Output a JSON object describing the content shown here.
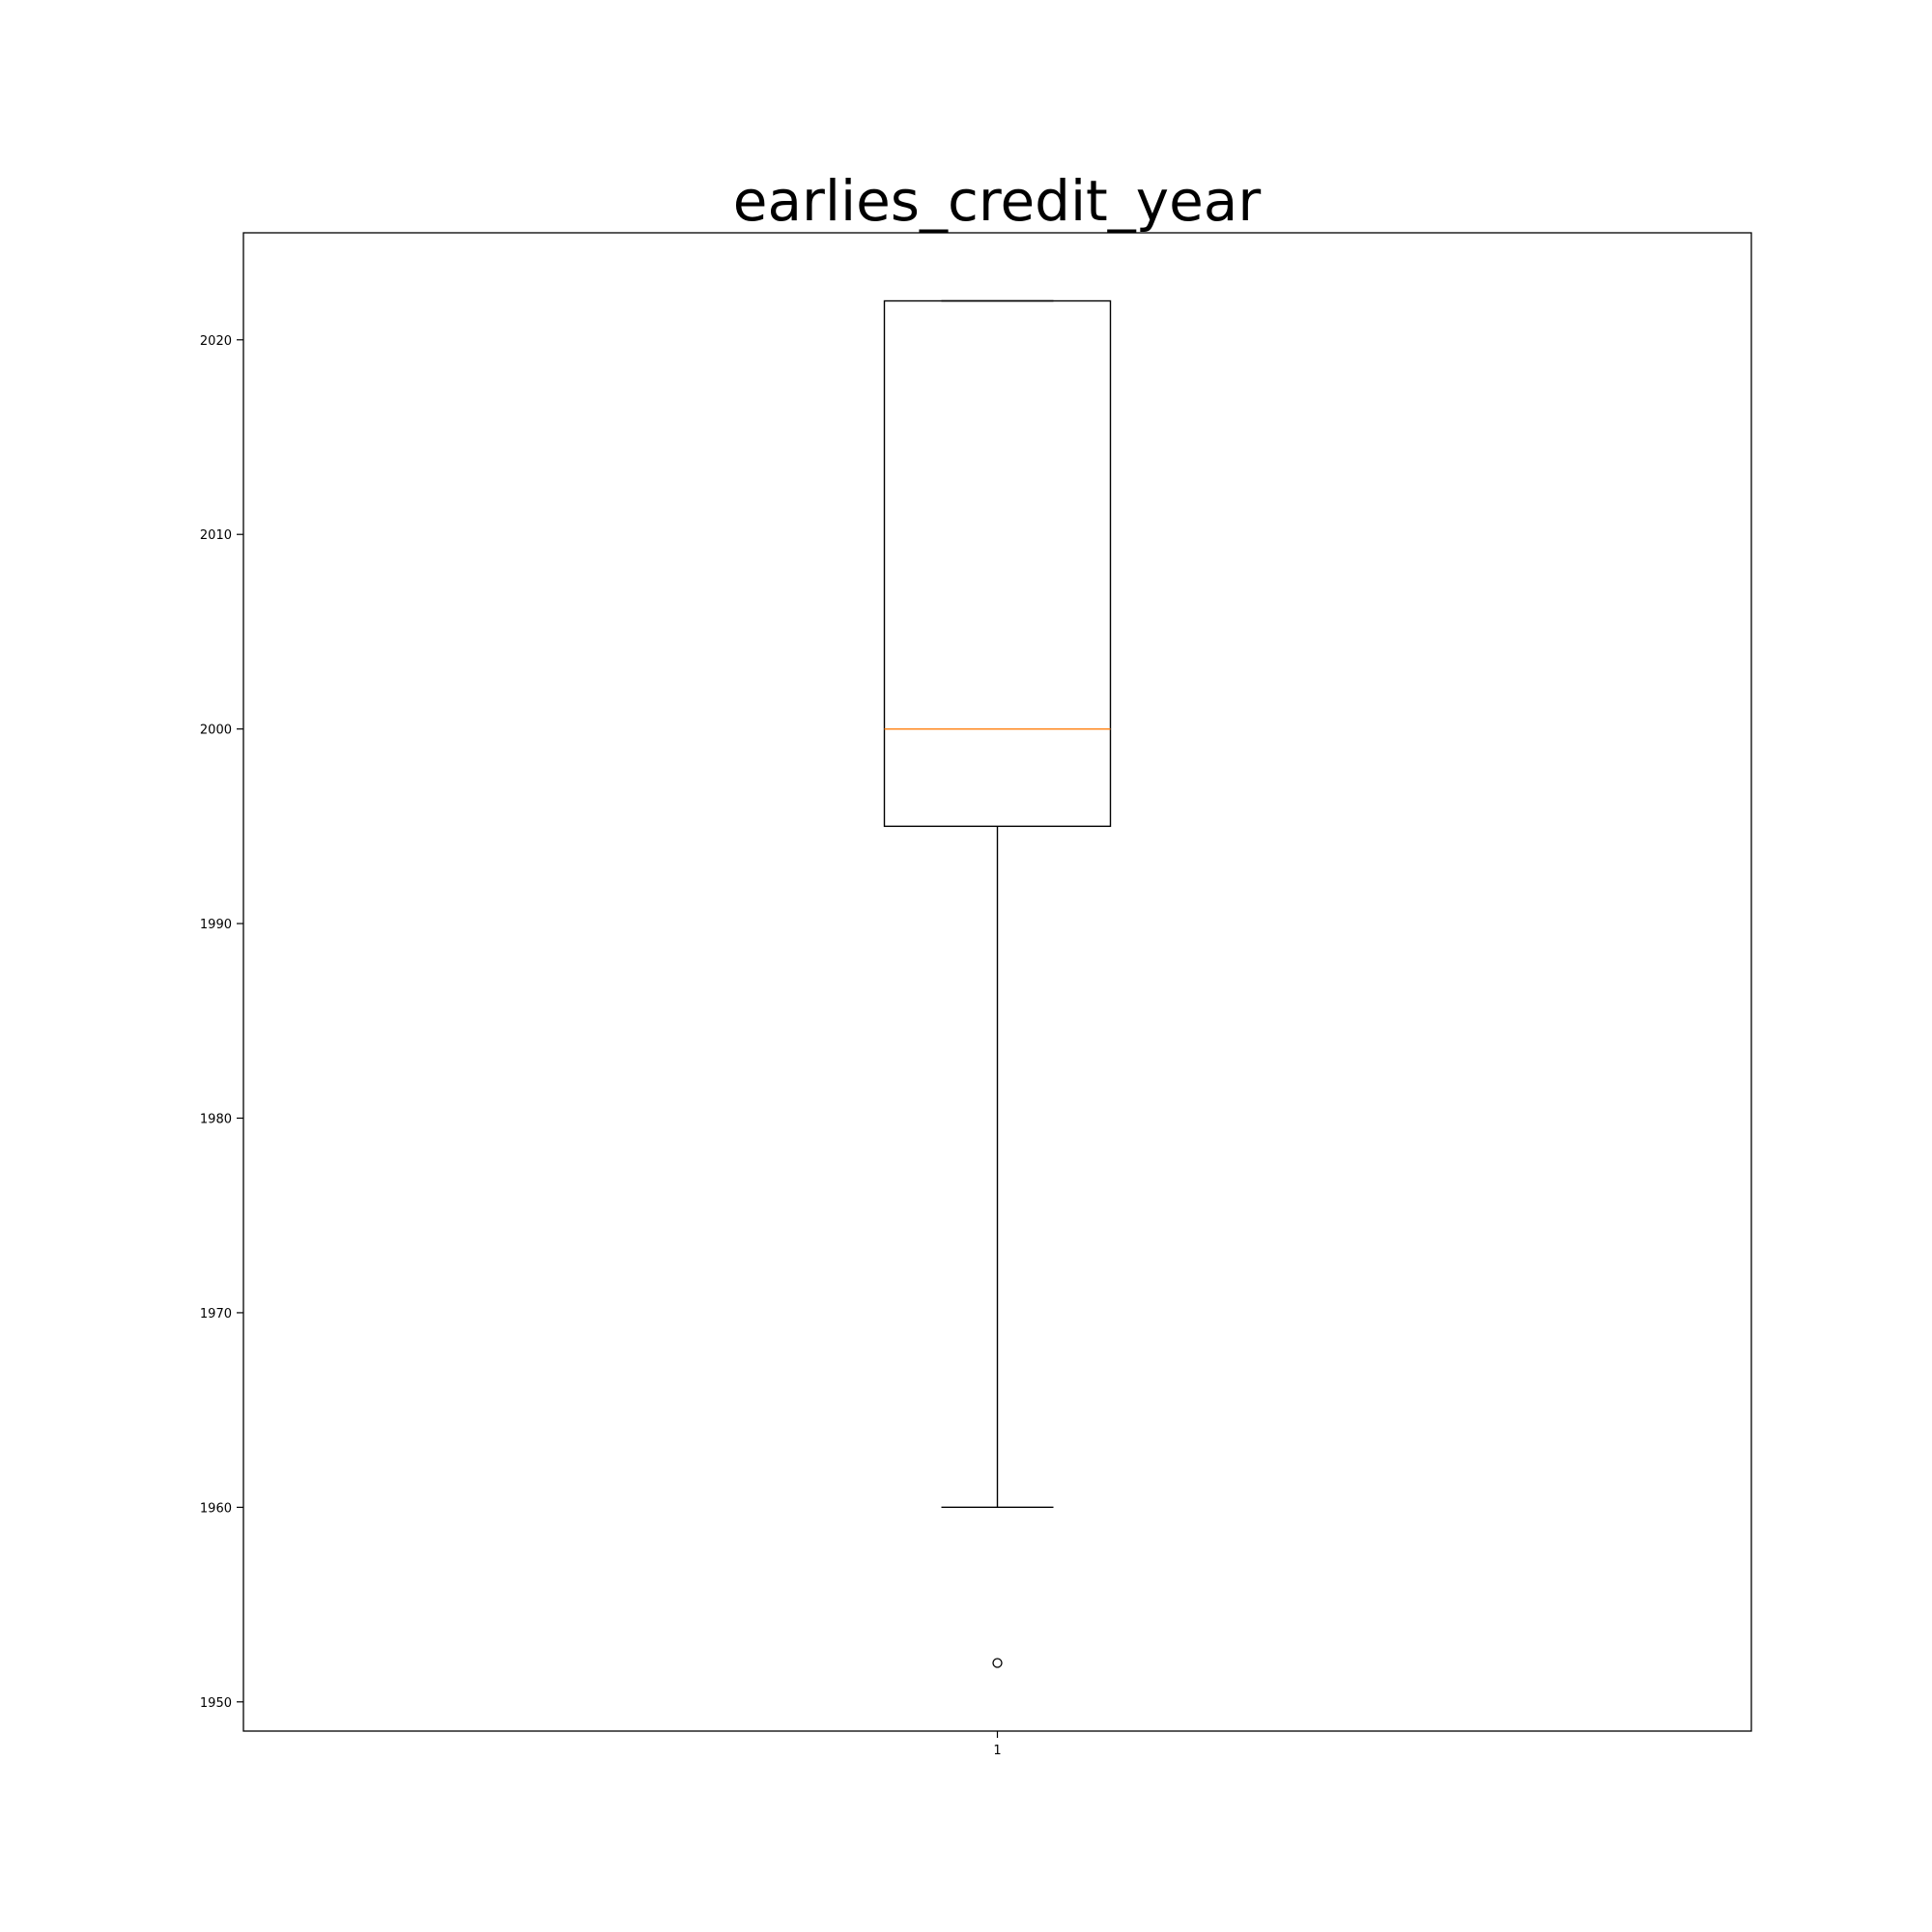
{
  "chart_data": {
    "type": "box",
    "title": "earlies_credit_year",
    "xlabel": "",
    "ylabel": "",
    "categories": [
      "1"
    ],
    "ylim": [
      1948.5,
      2025.5
    ],
    "yticks": [
      1950,
      1960,
      1970,
      1980,
      1990,
      2000,
      2010,
      2020
    ],
    "boxes": [
      {
        "category": "1",
        "whisker_low": 1960,
        "q1": 1995,
        "median": 2000,
        "q3": 2022,
        "whisker_high": 2022,
        "outliers": [
          1952
        ]
      }
    ],
    "grid": false,
    "colors": {
      "box": "#000000",
      "median": "#ff7f0e",
      "outlier": "#000000"
    }
  }
}
